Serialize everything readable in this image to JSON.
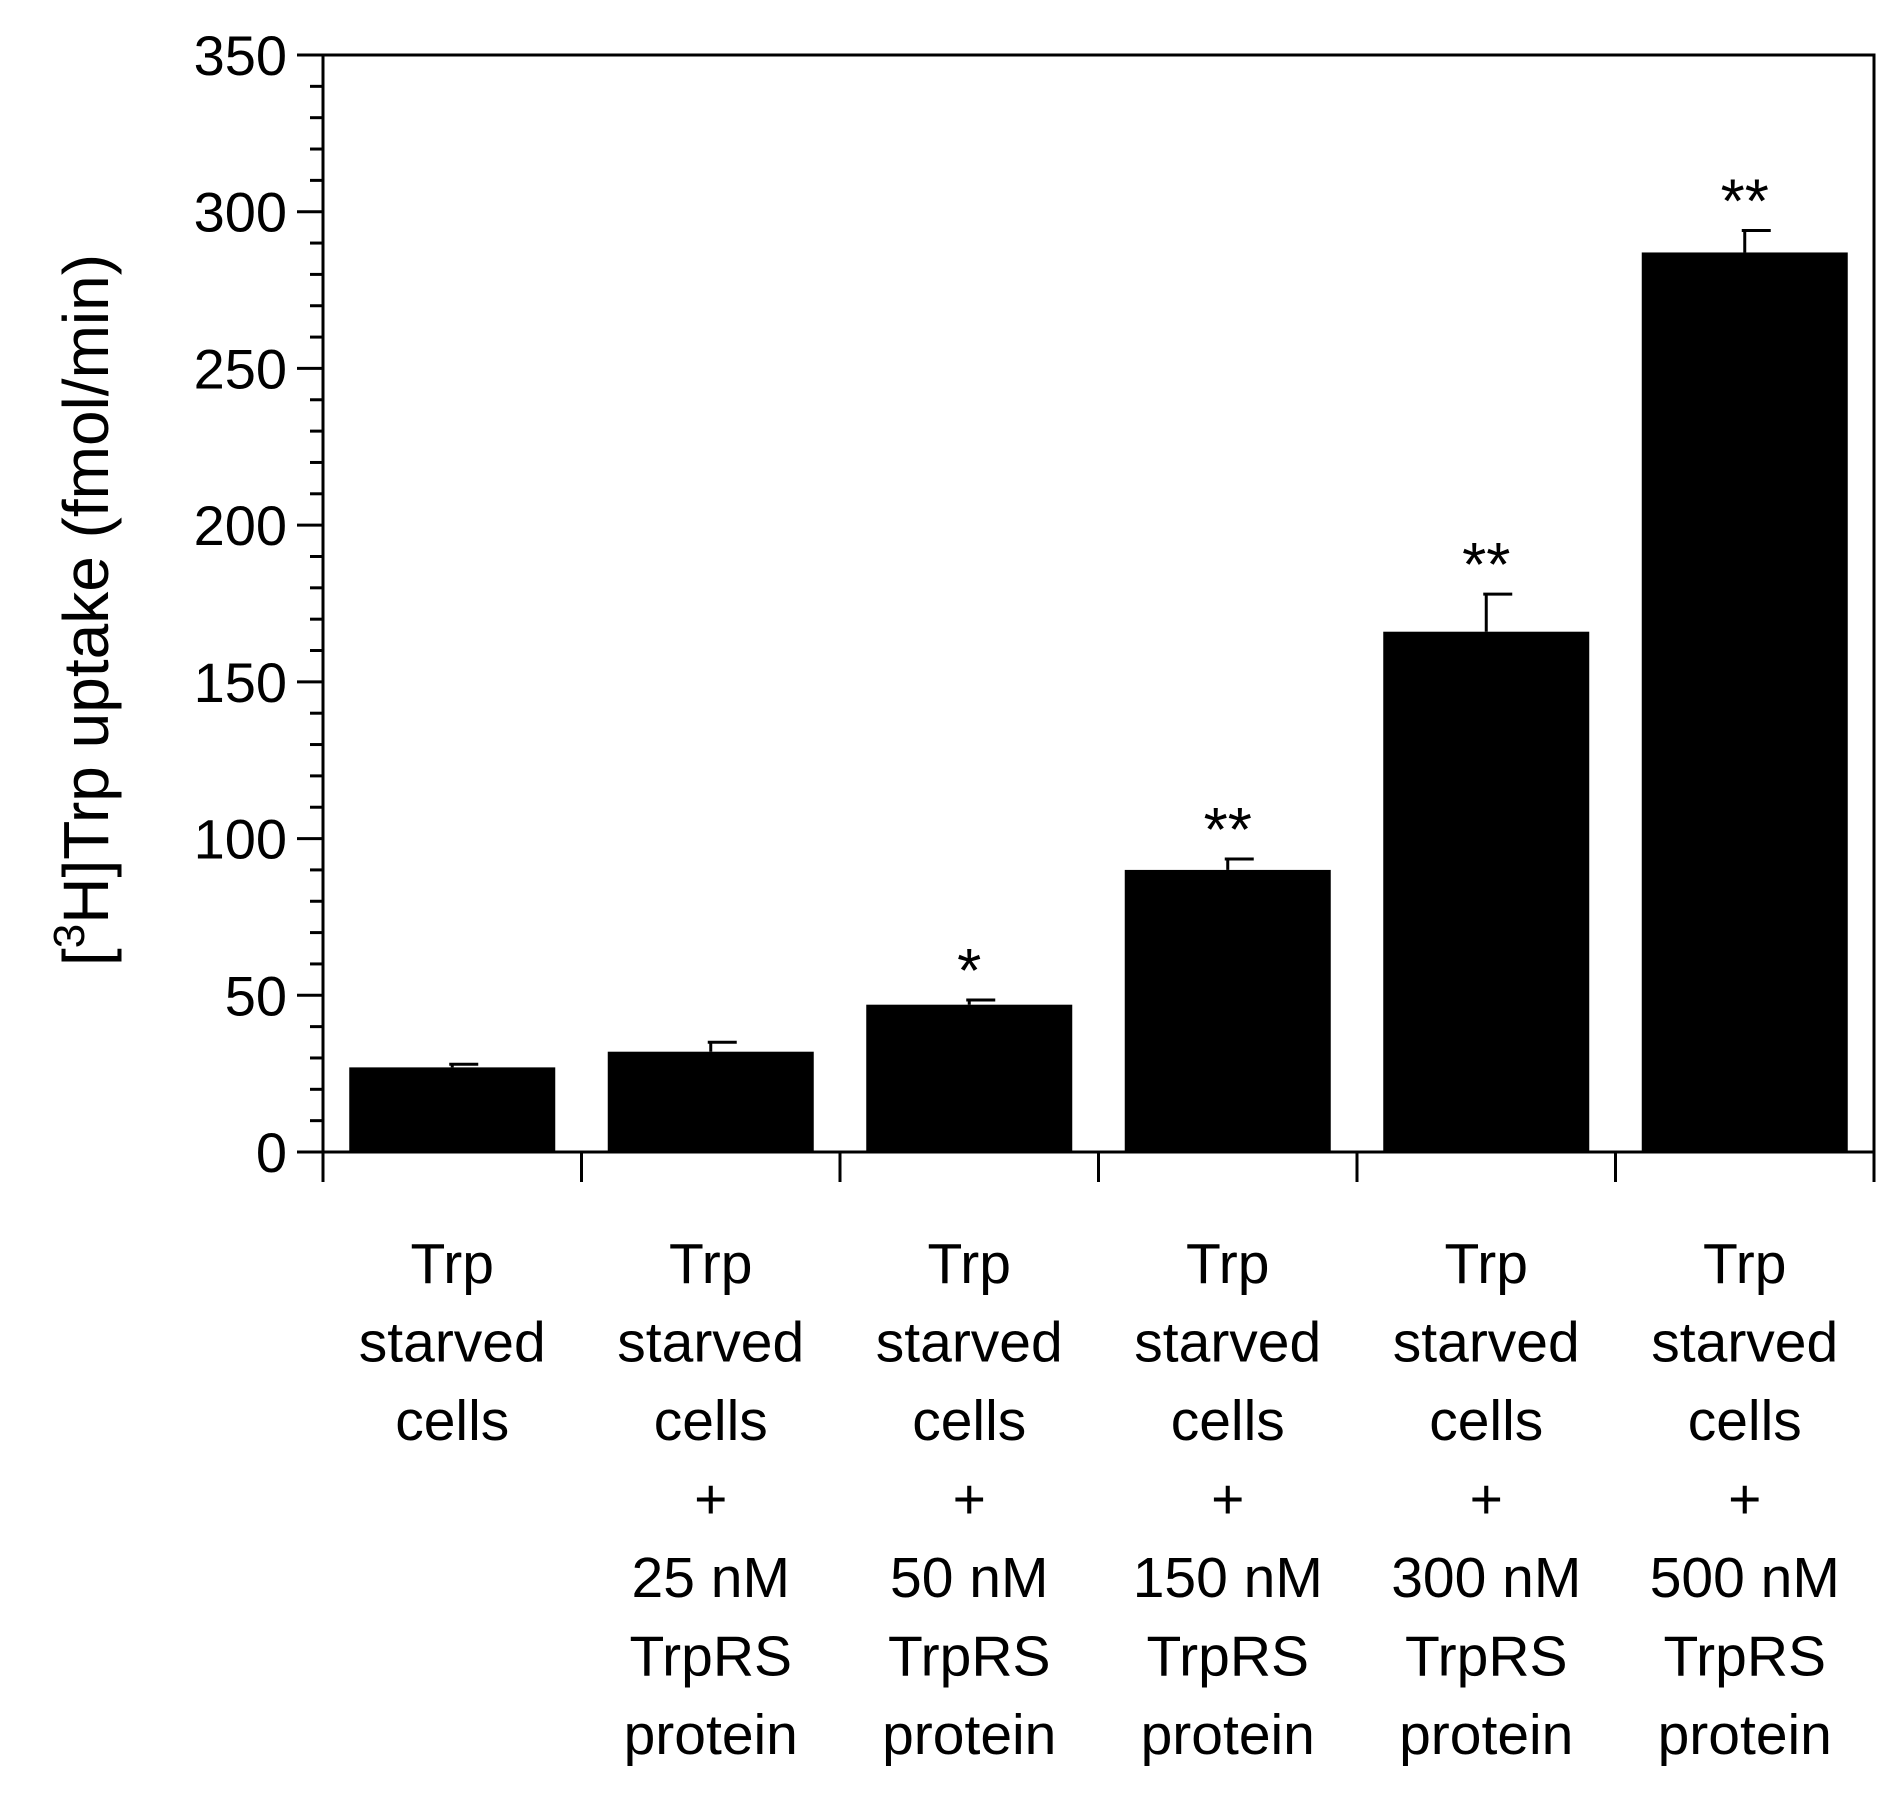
{
  "chart_data": {
    "type": "bar",
    "title": "",
    "ylabel": {
      "bracket_open": "[",
      "superscript": "3",
      "rest": "H]Trp uptake (fmol/min)"
    },
    "xlabel": "",
    "ylim": [
      0,
      350
    ],
    "y_major_ticks": [
      0,
      50,
      100,
      150,
      200,
      250,
      300,
      350
    ],
    "y_minor_step": 10,
    "categories": [
      [
        "Trp",
        "starved",
        "cells"
      ],
      [
        "Trp",
        "starved",
        "cells",
        "+",
        "25 nM",
        "TrpRS",
        "protein"
      ],
      [
        "Trp",
        "starved",
        "cells",
        "+",
        "50 nM",
        "TrpRS",
        "protein"
      ],
      [
        "Trp",
        "starved",
        "cells",
        "+",
        "150 nM",
        "TrpRS",
        "protein"
      ],
      [
        "Trp",
        "starved",
        "cells",
        "+",
        "300 nM",
        "TrpRS",
        "protein"
      ],
      [
        "Trp",
        "starved",
        "cells",
        "+",
        "500 nM",
        "TrpRS",
        "protein"
      ]
    ],
    "values": [
      27,
      32,
      47,
      90,
      166,
      287
    ],
    "errors": [
      1,
      3,
      1.5,
      3.5,
      12,
      7
    ],
    "significance": [
      "",
      "",
      "*",
      "**",
      "**",
      "**"
    ],
    "bar_color": "#000000",
    "axis_color": "#000000"
  }
}
